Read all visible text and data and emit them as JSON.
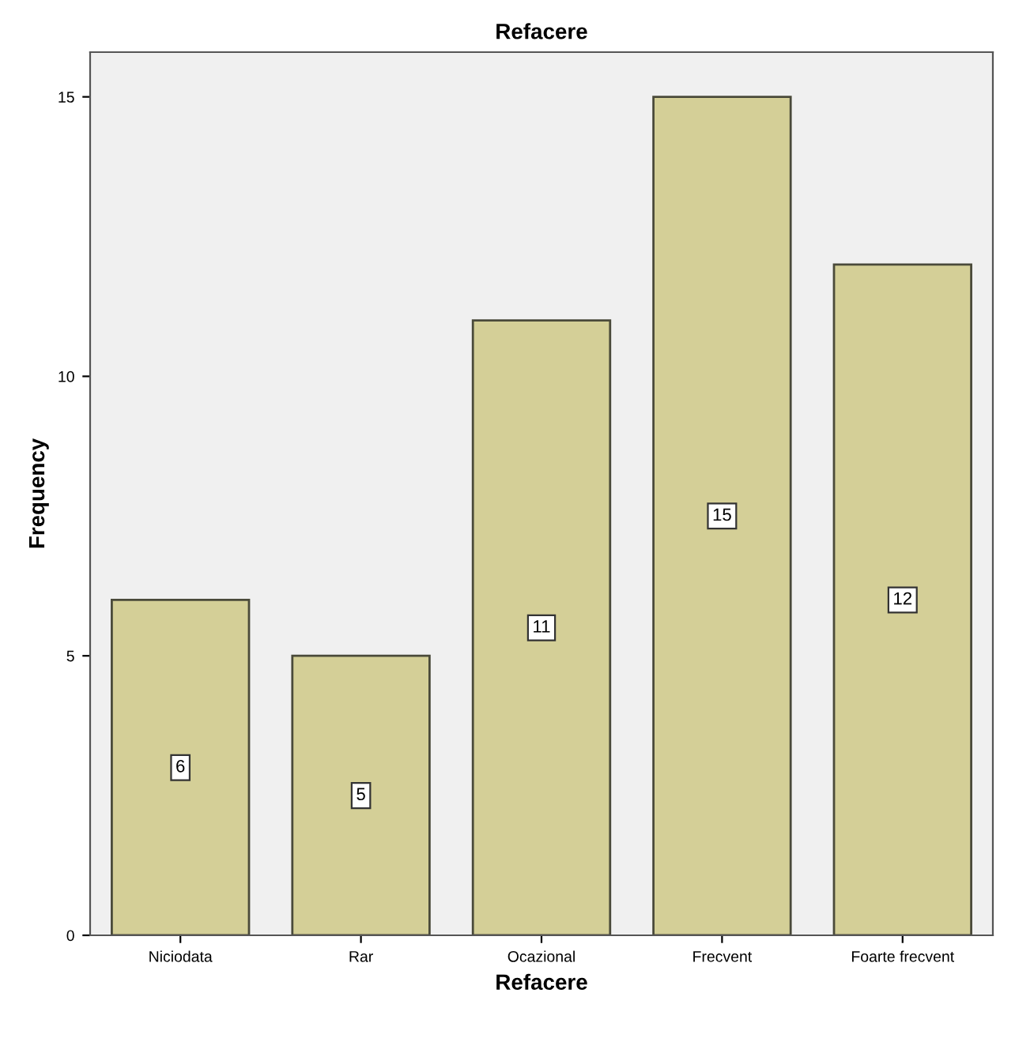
{
  "chart_data": {
    "type": "bar",
    "title": "Refacere",
    "xlabel": "Refacere",
    "ylabel": "Frequency",
    "categories": [
      "Niciodata",
      "Rar",
      "Ocazional",
      "Frecvent",
      "Foarte frecvent"
    ],
    "values": [
      6,
      5,
      11,
      15,
      12
    ],
    "color": "#d4cf97",
    "ylim": [
      0,
      15.8
    ],
    "yticks": [
      0,
      5,
      10,
      15
    ],
    "grid": false,
    "data_labels": true
  }
}
